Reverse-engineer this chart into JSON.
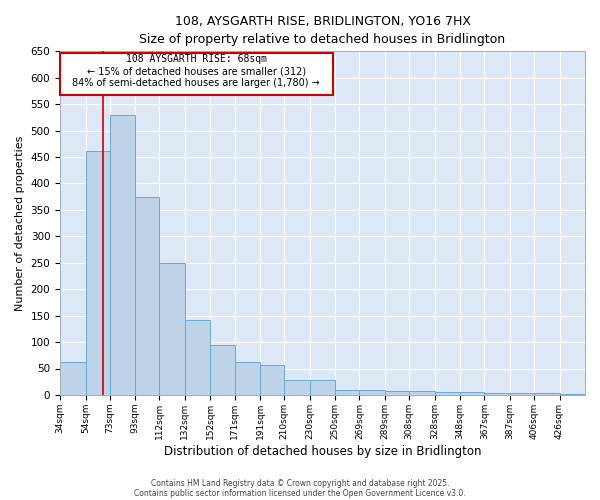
{
  "title": "108, AYSGARTH RISE, BRIDLINGTON, YO16 7HX",
  "subtitle": "Size of property relative to detached houses in Bridlington",
  "xlabel": "Distribution of detached houses by size in Bridlington",
  "ylabel": "Number of detached properties",
  "annotation_line1": "108 AYSGARTH RISE: 68sqm",
  "annotation_line2": "← 15% of detached houses are smaller (312)",
  "annotation_line3": "84% of semi-detached houses are larger (1,780) →",
  "property_size_sqm": 68,
  "bar_edges": [
    34,
    54,
    73,
    93,
    112,
    132,
    152,
    171,
    191,
    210,
    230,
    250,
    269,
    289,
    308,
    328,
    348,
    367,
    387,
    406,
    426
  ],
  "bar_heights": [
    63,
    462,
    530,
    375,
    250,
    142,
    95,
    63,
    57,
    28,
    28,
    10,
    10,
    8,
    8,
    5,
    5,
    4,
    4,
    3,
    2
  ],
  "bar_color": "#bed2e8",
  "bar_edge_color": "#6aaad4",
  "line_color": "#cc0000",
  "bg_color": "#dce8f5",
  "grid_color": "#ffffff",
  "ylim": [
    0,
    650
  ],
  "yticks": [
    0,
    50,
    100,
    150,
    200,
    250,
    300,
    350,
    400,
    450,
    500,
    550,
    600,
    650
  ],
  "footer_line1": "Contains HM Land Registry data © Crown copyright and database right 2025.",
  "footer_line2": "Contains public sector information licensed under the Open Government Licence v3.0."
}
